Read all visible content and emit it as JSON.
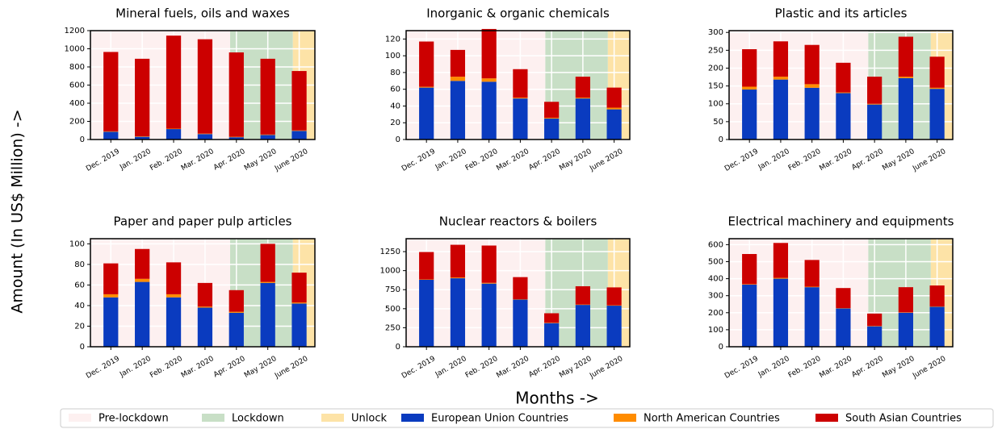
{
  "figure": {
    "y_label": "Amount (In US$ Million) ->",
    "x_label": "Months ->",
    "phases": [
      {
        "name": "Pre-lockdown",
        "color": "#fdf0f0",
        "from": "Dec. 2019",
        "to": "Mar. 2020"
      },
      {
        "name": "Lockdown",
        "color": "#c8dfc6",
        "from": "Apr. 2020",
        "to": "May 2020"
      },
      {
        "name": "Unlock",
        "color": "#fde3a7",
        "from": "June 2020",
        "to": "June 2020"
      }
    ]
  },
  "chart_data": [
    {
      "type": "bar",
      "stacked": true,
      "title": "Mineral fuels, oils and waxes",
      "categories": [
        "Dec. 2019",
        "Jan. 2020",
        "Feb. 2020",
        "Mar. 2020",
        "Apr. 2020",
        "May 2020",
        "June 2020"
      ],
      "series": [
        {
          "name": "European Union Countries",
          "color": "#0a3bbf",
          "values": [
            85,
            30,
            115,
            60,
            25,
            50,
            95
          ]
        },
        {
          "name": "North American Countries",
          "color": "#ff8c00",
          "values": [
            5,
            5,
            5,
            5,
            5,
            5,
            5
          ]
        },
        {
          "name": "South Asian Countries",
          "color": "#cc0000",
          "values": [
            875,
            855,
            1025,
            1040,
            930,
            835,
            655
          ]
        }
      ],
      "ylim": [
        0,
        1200
      ],
      "yticks": [
        0,
        200,
        400,
        600,
        800,
        1000,
        1200
      ],
      "grid": true
    },
    {
      "type": "bar",
      "stacked": true,
      "title": "Inorganic & organic chemicals",
      "categories": [
        "Dec. 2019",
        "Jan. 2020",
        "Feb. 2020",
        "Mar. 2020",
        "Apr. 2020",
        "May 2020",
        "June 2020"
      ],
      "series": [
        {
          "name": "European Union Countries",
          "color": "#0a3bbf",
          "values": [
            62,
            70,
            69,
            49,
            25,
            49,
            36
          ]
        },
        {
          "name": "North American Countries",
          "color": "#ff8c00",
          "values": [
            1,
            5,
            4,
            1,
            1,
            1,
            2
          ]
        },
        {
          "name": "South Asian Countries",
          "color": "#cc0000",
          "values": [
            54,
            32,
            59,
            34,
            19,
            25,
            24
          ]
        }
      ],
      "ylim": [
        0,
        130
      ],
      "yticks": [
        0,
        20,
        40,
        60,
        80,
        100,
        120
      ],
      "grid": true
    },
    {
      "type": "bar",
      "stacked": true,
      "title": "Plastic and its articles",
      "categories": [
        "Dec. 2019",
        "Jan. 2020",
        "Feb. 2020",
        "Mar. 2020",
        "Apr. 2020",
        "May 2020",
        "June 2020"
      ],
      "series": [
        {
          "name": "European Union Countries",
          "color": "#0a3bbf",
          "values": [
            140,
            168,
            145,
            130,
            98,
            172,
            142
          ]
        },
        {
          "name": "North American Countries",
          "color": "#ff8c00",
          "values": [
            8,
            8,
            10,
            2,
            2,
            4,
            3
          ]
        },
        {
          "name": "South Asian Countries",
          "color": "#cc0000",
          "values": [
            105,
            99,
            110,
            83,
            76,
            112,
            87
          ]
        }
      ],
      "ylim": [
        0,
        305
      ],
      "yticks": [
        0,
        50,
        100,
        150,
        200,
        250,
        300
      ],
      "grid": true
    },
    {
      "type": "bar",
      "stacked": true,
      "title": "Paper and paper pulp articles",
      "categories": [
        "Dec. 2019",
        "Jan. 2020",
        "Feb. 2020",
        "Mar. 2020",
        "Apr. 2020",
        "May 2020",
        "June 2020"
      ],
      "series": [
        {
          "name": "European Union Countries",
          "color": "#0a3bbf",
          "values": [
            48,
            63,
            48,
            38,
            33,
            62,
            42
          ]
        },
        {
          "name": "North American Countries",
          "color": "#ff8c00",
          "values": [
            3,
            3,
            3,
            1,
            1,
            1,
            1
          ]
        },
        {
          "name": "South Asian Countries",
          "color": "#cc0000",
          "values": [
            30,
            29,
            31,
            23,
            21,
            37,
            29
          ]
        }
      ],
      "ylim": [
        0,
        105
      ],
      "yticks": [
        0,
        20,
        40,
        60,
        80,
        100
      ],
      "grid": true
    },
    {
      "type": "bar",
      "stacked": true,
      "title": "Nuclear reactors & boilers",
      "categories": [
        "Dec. 2019",
        "Jan. 2020",
        "Feb. 2020",
        "Mar. 2020",
        "Apr. 2020",
        "May 2020",
        "June 2020"
      ],
      "series": [
        {
          "name": "European Union Countries",
          "color": "#0a3bbf",
          "values": [
            880,
            900,
            830,
            620,
            310,
            550,
            540
          ]
        },
        {
          "name": "North American Countries",
          "color": "#ff8c00",
          "values": [
            5,
            10,
            10,
            5,
            5,
            5,
            5
          ]
        },
        {
          "name": "South Asian Countries",
          "color": "#cc0000",
          "values": [
            360,
            430,
            490,
            290,
            125,
            240,
            235
          ]
        }
      ],
      "ylim": [
        0,
        1420
      ],
      "yticks": [
        0,
        250,
        500,
        750,
        1000,
        1250
      ],
      "grid": true
    },
    {
      "type": "bar",
      "stacked": true,
      "title": "Electrical machinery and equipments",
      "categories": [
        "Dec. 2019",
        "Jan. 2020",
        "Feb. 2020",
        "Mar. 2020",
        "Apr. 2020",
        "May 2020",
        "June 2020"
      ],
      "series": [
        {
          "name": "European Union Countries",
          "color": "#0a3bbf",
          "values": [
            365,
            400,
            350,
            225,
            120,
            200,
            235
          ]
        },
        {
          "name": "North American Countries",
          "color": "#ff8c00",
          "values": [
            3,
            5,
            3,
            2,
            2,
            2,
            2
          ]
        },
        {
          "name": "South Asian Countries",
          "color": "#cc0000",
          "values": [
            177,
            205,
            157,
            118,
            73,
            148,
            123
          ]
        }
      ],
      "ylim": [
        0,
        635
      ],
      "yticks": [
        0,
        100,
        200,
        300,
        400,
        500,
        600
      ],
      "grid": true
    }
  ]
}
